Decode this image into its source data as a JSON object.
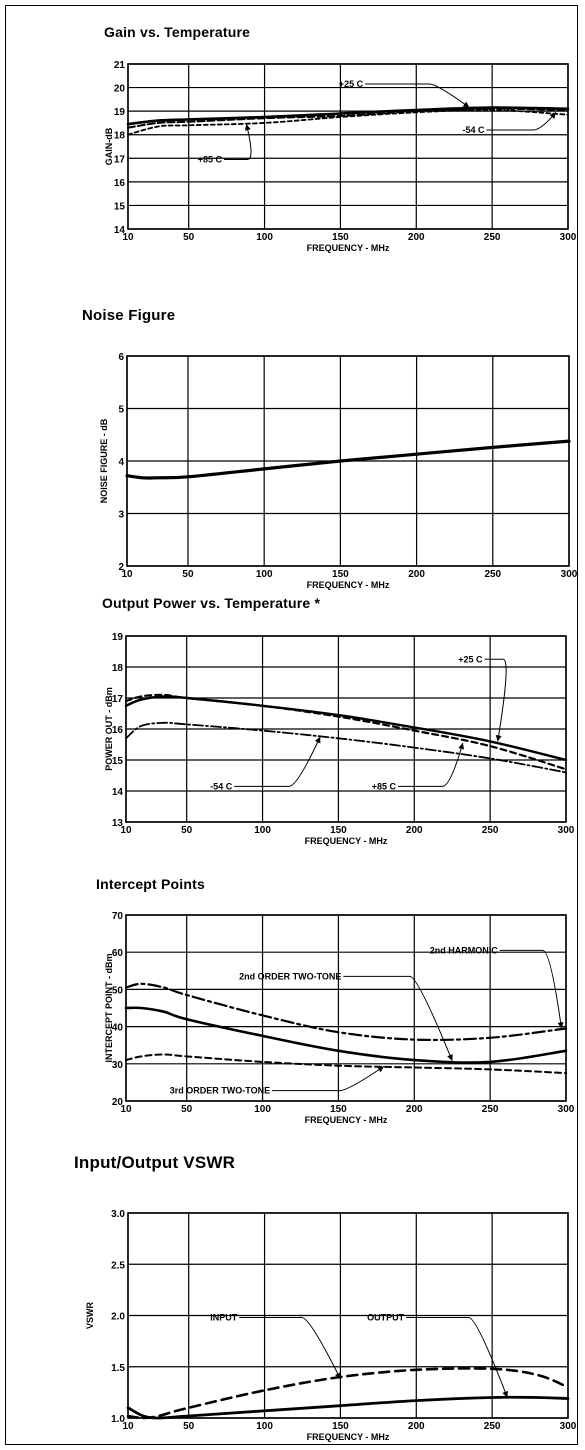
{
  "chart_data": [
    {
      "type": "line",
      "title": "Gain vs. Temperature",
      "xlabel": "FREQUENCY - MHz",
      "ylabel": "GAIN-dB",
      "xlim": [
        10,
        300
      ],
      "ylim": [
        14,
        21
      ],
      "xticks": [
        "10",
        "50",
        "100",
        "150",
        "200",
        "250",
        "300"
      ],
      "yticks": [
        "14",
        "15",
        "16",
        "17",
        "18",
        "19",
        "20",
        "21"
      ],
      "grid": true,
      "series": [
        {
          "name": "+25 C",
          "x": [
            10,
            30,
            50,
            100,
            150,
            200,
            250,
            300
          ],
          "y": [
            18.45,
            18.6,
            18.65,
            18.75,
            18.9,
            19.05,
            19.15,
            19.1
          ]
        },
        {
          "name": "-54 C",
          "x": [
            10,
            30,
            50,
            100,
            150,
            200,
            250,
            300
          ],
          "y": [
            18.3,
            18.5,
            18.55,
            18.7,
            18.8,
            19.0,
            19.1,
            19.05
          ]
        },
        {
          "name": "+85 C",
          "x": [
            10,
            30,
            50,
            100,
            150,
            200,
            250,
            300
          ],
          "y": [
            18.0,
            18.35,
            18.4,
            18.5,
            18.75,
            18.95,
            19.05,
            18.85
          ]
        }
      ],
      "annotations": [
        {
          "text": "+25 C",
          "x": 165,
          "y": 20.15,
          "tx": 235,
          "ty": 19.15
        },
        {
          "text": "-54 C",
          "x": 245,
          "y": 18.2,
          "tx": 292,
          "ty": 18.95
        },
        {
          "text": "+85 C",
          "x": 72,
          "y": 16.95,
          "tx": 88,
          "ty": 18.45
        }
      ]
    },
    {
      "type": "line",
      "title": "Noise Figure",
      "xlabel": "FREQUENCY - MHz",
      "ylabel": "NOISE FIGURE - dB",
      "xlim": [
        10,
        300
      ],
      "ylim": [
        2,
        6
      ],
      "xticks": [
        "10",
        "50",
        "100",
        "150",
        "200",
        "250",
        "300"
      ],
      "yticks": [
        "2",
        "3",
        "4",
        "5",
        "6"
      ],
      "grid": true,
      "series": [
        {
          "x": [
            10,
            20,
            30,
            50,
            100,
            150,
            200,
            250,
            300
          ],
          "y": [
            3.72,
            3.68,
            3.68,
            3.7,
            3.85,
            4.0,
            4.13,
            4.26,
            4.38
          ]
        }
      ]
    },
    {
      "type": "line",
      "title": "Output Power vs. Temperature *",
      "xlabel": "FREQUENCY - MHz",
      "ylabel": "POWER OUT - dBm",
      "xlim": [
        10,
        300
      ],
      "ylim": [
        13,
        19
      ],
      "xticks": [
        "10",
        "50",
        "100",
        "150",
        "200",
        "250",
        "300"
      ],
      "yticks": [
        "13",
        "14",
        "15",
        "16",
        "17",
        "18",
        "19"
      ],
      "grid": true,
      "series": [
        {
          "name": "+25 C",
          "x": [
            10,
            20,
            35,
            50,
            100,
            150,
            200,
            250,
            300
          ],
          "y": [
            16.75,
            16.95,
            17.05,
            17.0,
            16.75,
            16.45,
            16.05,
            15.6,
            15.0
          ]
        },
        {
          "name": "-54 C",
          "x": [
            10,
            20,
            35,
            50,
            100,
            150,
            200,
            250,
            300
          ],
          "y": [
            15.7,
            16.1,
            16.2,
            16.15,
            15.95,
            15.7,
            15.4,
            15.05,
            14.6
          ]
        },
        {
          "name": "+85 C",
          "x": [
            10,
            20,
            35,
            50,
            100,
            150,
            200,
            250,
            300
          ],
          "y": [
            16.9,
            17.05,
            17.1,
            17.0,
            16.75,
            16.4,
            15.95,
            15.45,
            14.7
          ]
        }
      ],
      "annotations": [
        {
          "text": "+25 C",
          "x": 245,
          "y": 18.25,
          "tx": 255,
          "ty": 15.6
        },
        {
          "text": "-54 C",
          "x": 80,
          "y": 14.15,
          "tx": 138,
          "ty": 15.75
        },
        {
          "text": "+85 C",
          "x": 188,
          "y": 14.15,
          "tx": 232,
          "ty": 15.55
        }
      ]
    },
    {
      "type": "line",
      "title": "Intercept Points",
      "xlabel": "FREQUENCY - MHz",
      "ylabel": "INTERCEPT POINT - dBm",
      "xlim": [
        10,
        300
      ],
      "ylim": [
        20,
        70
      ],
      "xticks": [
        "10",
        "50",
        "100",
        "150",
        "200",
        "250",
        "300"
      ],
      "yticks": [
        "20",
        "30",
        "40",
        "50",
        "60",
        "70"
      ],
      "grid": true,
      "series": [
        {
          "name": "2nd HARMONIC",
          "x": [
            10,
            20,
            35,
            50,
            100,
            150,
            200,
            250,
            300
          ],
          "y": [
            50.5,
            51.5,
            50.5,
            48.5,
            43.0,
            38.5,
            36.5,
            37.0,
            39.5
          ]
        },
        {
          "name": "2nd ORDER TWO-TONE",
          "x": [
            10,
            20,
            35,
            50,
            100,
            150,
            200,
            250,
            300
          ],
          "y": [
            45.0,
            45.0,
            44.0,
            42.0,
            37.5,
            33.5,
            31.0,
            30.5,
            33.5
          ]
        },
        {
          "name": "3rd ORDER TWO-TONE",
          "x": [
            10,
            20,
            35,
            50,
            100,
            150,
            200,
            250,
            300
          ],
          "y": [
            31.0,
            32.0,
            32.5,
            32.0,
            30.5,
            29.5,
            29.0,
            28.5,
            27.5
          ]
        }
      ],
      "annotations": [
        {
          "text": "2nd HARMONIC",
          "x": 255,
          "y": 60.5,
          "tx": 297,
          "ty": 39.5
        },
        {
          "text": "2nd ORDER TWO-TONE",
          "x": 152,
          "y": 53.5,
          "tx": 225,
          "ty": 30.8
        },
        {
          "text": "3rd ORDER TWO-TONE",
          "x": 105,
          "y": 22.8,
          "tx": 180,
          "ty": 29.3
        }
      ]
    },
    {
      "type": "line",
      "title": "Input/Output VSWR",
      "xlabel": "FREQUENCY - MHz",
      "ylabel": "VSWR",
      "xlim": [
        10,
        300
      ],
      "ylim": [
        1.0,
        3.0
      ],
      "xticks": [
        "10",
        "50",
        "100",
        "150",
        "200",
        "250",
        "300"
      ],
      "yticks": [
        "1.0",
        "1.5",
        "2.0",
        "2.5",
        "3.0"
      ],
      "grid": true,
      "series": [
        {
          "name": "INPUT",
          "x": [
            10,
            20,
            30,
            50,
            100,
            150,
            200,
            250,
            280,
            300
          ],
          "y": [
            1.02,
            1.0,
            1.02,
            1.1,
            1.27,
            1.4,
            1.47,
            1.48,
            1.42,
            1.3
          ]
        },
        {
          "name": "OUTPUT",
          "x": [
            10,
            20,
            30,
            50,
            100,
            150,
            200,
            250,
            280,
            300
          ],
          "y": [
            1.1,
            1.02,
            1.0,
            1.02,
            1.07,
            1.12,
            1.17,
            1.2,
            1.2,
            1.19
          ]
        }
      ],
      "annotations": [
        {
          "text": "INPUT",
          "x": 82,
          "y": 1.98,
          "tx": 150,
          "ty": 1.38
        },
        {
          "text": "OUTPUT",
          "x": 192,
          "y": 1.98,
          "tx": 260,
          "ty": 1.2
        }
      ]
    }
  ]
}
